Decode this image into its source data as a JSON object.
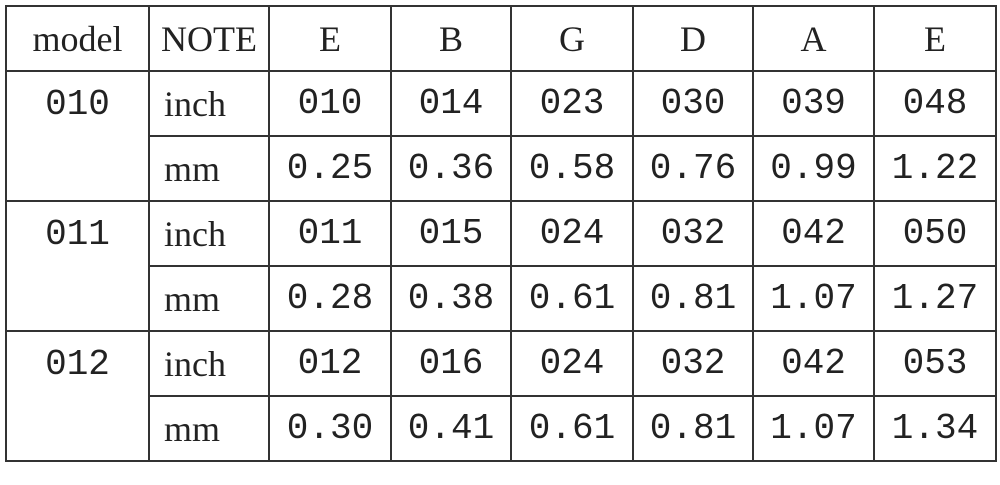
{
  "table": {
    "header": [
      "model",
      "NOTE",
      "E",
      "B",
      "G",
      "D",
      "A",
      "E"
    ],
    "groups": [
      {
        "model": "010",
        "rows": [
          {
            "unit": "inch",
            "values": [
              "010",
              "014",
              "023",
              "030",
              "039",
              "048"
            ]
          },
          {
            "unit": "mm",
            "values": [
              "0.25",
              "0.36",
              "0.58",
              "0.76",
              "0.99",
              "1.22"
            ]
          }
        ]
      },
      {
        "model": "011",
        "rows": [
          {
            "unit": "inch",
            "values": [
              "011",
              "015",
              "024",
              "032",
              "042",
              "050"
            ]
          },
          {
            "unit": "mm",
            "values": [
              "0.28",
              "0.38",
              "0.61",
              "0.81",
              "1.07",
              "1.27"
            ]
          }
        ]
      },
      {
        "model": "012",
        "rows": [
          {
            "unit": "inch",
            "values": [
              "012",
              "016",
              "024",
              "032",
              "042",
              "053"
            ]
          },
          {
            "unit": "mm",
            "values": [
              "0.30",
              "0.41",
              "0.61",
              "0.81",
              "1.07",
              "1.34"
            ]
          }
        ]
      }
    ]
  }
}
